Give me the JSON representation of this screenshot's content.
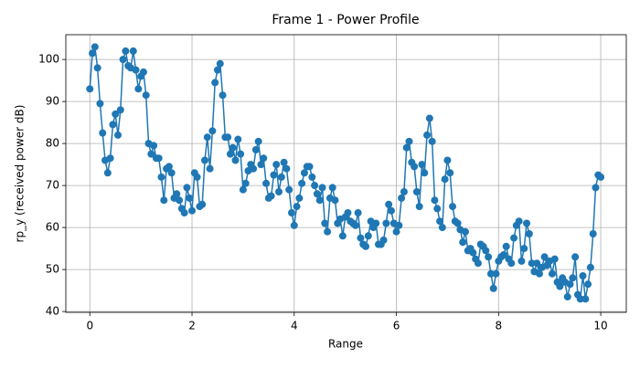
{
  "chart_data": {
    "type": "line",
    "title": "Frame 1 - Power Profile",
    "x_label": "Range",
    "y_label": "rp_y (received power dB)",
    "x": [
      0,
      0.05,
      0.1,
      0.15,
      0.2,
      0.25,
      0.3,
      0.35,
      0.4,
      0.45,
      0.5,
      0.55,
      0.6,
      0.65,
      0.7,
      0.75,
      0.8,
      0.85,
      0.9,
      0.95,
      1,
      1.05,
      1.1,
      1.15,
      1.2,
      1.25,
      1.3,
      1.35,
      1.4,
      1.45,
      1.5,
      1.55,
      1.6,
      1.65,
      1.7,
      1.75,
      1.8,
      1.85,
      1.9,
      1.95,
      2,
      2.05,
      2.1,
      2.15,
      2.2,
      2.25,
      2.3,
      2.35,
      2.4,
      2.45,
      2.5,
      2.55,
      2.6,
      2.65,
      2.7,
      2.75,
      2.8,
      2.85,
      2.9,
      2.95,
      3,
      3.05,
      3.1,
      3.15,
      3.2,
      3.25,
      3.3,
      3.35,
      3.4,
      3.45,
      3.5,
      3.55,
      3.6,
      3.65,
      3.7,
      3.75,
      3.8,
      3.85,
      3.9,
      3.95,
      4,
      4.05,
      4.1,
      4.15,
      4.2,
      4.25,
      4.3,
      4.35,
      4.4,
      4.45,
      4.5,
      4.55,
      4.6,
      4.65,
      4.7,
      4.75,
      4.8,
      4.85,
      4.9,
      4.95,
      5,
      5.05,
      5.1,
      5.15,
      5.2,
      5.25,
      5.3,
      5.35,
      5.4,
      5.45,
      5.5,
      5.55,
      5.6,
      5.65,
      5.7,
      5.75,
      5.8,
      5.85,
      5.9,
      5.95,
      6,
      6.05,
      6.1,
      6.15,
      6.2,
      6.25,
      6.3,
      6.35,
      6.4,
      6.45,
      6.5,
      6.55,
      6.6,
      6.65,
      6.7,
      6.75,
      6.8,
      6.85,
      6.9,
      6.95,
      7,
      7.05,
      7.1,
      7.15,
      7.2,
      7.25,
      7.3,
      7.35,
      7.4,
      7.45,
      7.5,
      7.55,
      7.6,
      7.65,
      7.7,
      7.75,
      7.8,
      7.85,
      7.9,
      7.95,
      8,
      8.05,
      8.1,
      8.15,
      8.2,
      8.25,
      8.3,
      8.35,
      8.4,
      8.45,
      8.5,
      8.55,
      8.6,
      8.65,
      8.7,
      8.75,
      8.8,
      8.85,
      8.9,
      8.95,
      9,
      9.05,
      9.1,
      9.15,
      9.2,
      9.25,
      9.3,
      9.35,
      9.4,
      9.45,
      9.5,
      9.55,
      9.6,
      9.65,
      9.7,
      9.75,
      9.8,
      9.85,
      9.9,
      9.95,
      10
    ],
    "series": [
      {
        "color": "#1f77b4",
        "values": [
          93,
          101.5,
          103,
          98,
          89.5,
          82.5,
          76,
          73,
          76.5,
          84.5,
          87,
          82,
          88,
          100,
          102,
          98.5,
          98,
          102,
          97.5,
          93,
          96,
          97,
          91.5,
          80,
          77.5,
          79.5,
          76.5,
          76.5,
          72,
          66.5,
          74,
          74.5,
          73,
          67,
          68,
          66.5,
          64.5,
          63.5,
          69.5,
          67,
          64,
          73,
          72,
          65,
          65.5,
          76,
          81.5,
          74,
          83,
          94.5,
          97.5,
          99,
          91.5,
          81.5,
          81.5,
          77.5,
          79,
          76,
          81,
          77.5,
          69,
          70.5,
          73.5,
          75,
          74,
          78.5,
          80.5,
          75,
          76.5,
          70.5,
          67,
          67.5,
          72.5,
          75,
          68.5,
          72,
          75.5,
          74,
          69,
          63.5,
          60.5,
          65,
          67,
          70.5,
          73,
          74.5,
          74.5,
          72,
          70,
          68,
          66.5,
          69.5,
          61,
          59,
          67,
          69.5,
          66.5,
          61,
          62,
          58,
          62.5,
          63.5,
          61.5,
          61,
          60.5,
          63.5,
          57.5,
          56,
          55.5,
          58,
          61.5,
          60,
          61,
          56,
          56,
          57,
          61,
          65.5,
          64,
          61,
          59,
          60.5,
          67,
          68.5,
          79,
          80.5,
          75.5,
          74.5,
          68.5,
          65,
          75,
          73,
          82,
          86,
          80.5,
          66.5,
          64.5,
          61.5,
          60,
          71.5,
          76,
          73,
          65,
          61.5,
          61,
          59.5,
          56.5,
          59,
          54.5,
          55,
          54,
          52.5,
          51.5,
          56,
          55.5,
          54.5,
          53,
          49,
          45.5,
          49,
          52,
          53,
          53.5,
          55.5,
          52.5,
          51.5,
          57.5,
          60.5,
          61.5,
          52,
          55,
          61,
          58.5,
          51.5,
          49.5,
          51.5,
          49,
          50.5,
          53,
          51,
          52,
          49,
          52.5,
          47,
          46,
          48,
          47,
          43.5,
          46.5,
          48,
          53,
          44,
          43,
          48.5,
          43,
          46.5,
          50.5,
          58.5,
          69.5,
          72.5,
          72
        ]
      }
    ],
    "xlim": [
      -0.47,
      10.5
    ],
    "xticks": [
      0,
      2,
      4,
      6,
      8,
      10
    ],
    "ylim": [
      39.8,
      105.9
    ],
    "yticks": [
      40,
      50,
      60,
      70,
      80,
      90,
      100
    ],
    "grid": true
  }
}
